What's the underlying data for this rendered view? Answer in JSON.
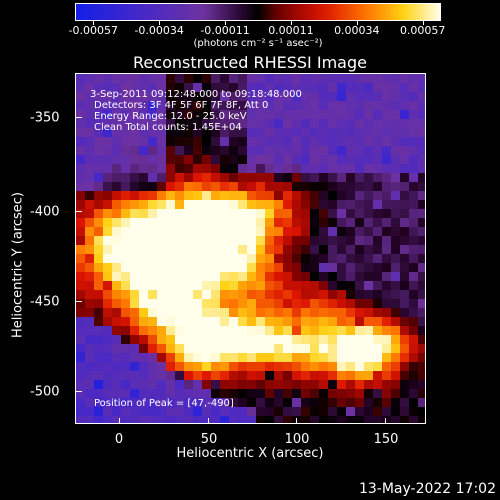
{
  "colorbar": {
    "tick_labels": [
      "-0.00057",
      "-0.00034",
      "-0.00011",
      "0.00011",
      "0.00034",
      "0.00057"
    ],
    "units_label": "(photons cm⁻² s⁻¹ asec⁻²)"
  },
  "title": "Reconstructed RHESSI Image",
  "info": {
    "time_range": "3-Sep-2011 09:12:48.000 to 09:18:48.000",
    "detectors": "Detectors: 3F 4F 5F 6F 7F 8F, Att 0",
    "energy_range": "Energy Range: 12.0 - 25.0 keV",
    "algorithm_counts": "Clean     Total counts: 1.45E+04",
    "peak_position": "Position of Peak = [47,-490]"
  },
  "axes": {
    "x_title": "Heliocentric X (arcsec)",
    "y_title": "Heliocentric Y (arcsec)",
    "x_ticks": [
      "0",
      "50",
      "100",
      "150"
    ],
    "y_ticks": [
      "-350",
      "-400",
      "-450",
      "-500"
    ],
    "x_range": [
      -25,
      168
    ],
    "y_range": [
      -520,
      -327
    ]
  },
  "timestamp": "13-May-2022 17:02",
  "colors": {
    "background": "#000000",
    "foreground": "#ffffff"
  }
}
